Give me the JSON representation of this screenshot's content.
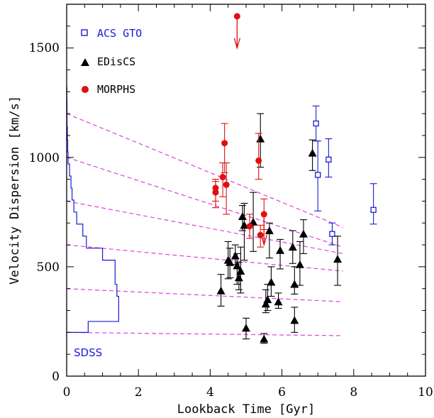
{
  "chart_data": {
    "type": "scatter",
    "xlabel": "Lookback Time [Gyr]",
    "ylabel": "Velocity Dispersion [km/s]",
    "xlim": [
      0,
      10
    ],
    "ylim": [
      0,
      1700
    ],
    "x_ticks": [
      "0",
      "2",
      "4",
      "6",
      "8",
      "10"
    ],
    "y_ticks": [
      "0",
      "500",
      "1000",
      "1500"
    ],
    "grid": false,
    "legend_position": "top-left",
    "colors": {
      "acs": "#1a1ad6",
      "edisc": "#000000",
      "morphs": "#e01010",
      "dashed": "#e040e0",
      "sdss": "#1a1ad6"
    },
    "series": [
      {
        "name": "ACS GTO",
        "marker": "open-square",
        "points": [
          {
            "x": 6.95,
            "y": 1155,
            "lo": 1075,
            "hi": 1235
          },
          {
            "x": 7.0,
            "y": 920,
            "lo": 755,
            "hi": 1075
          },
          {
            "x": 7.3,
            "y": 990,
            "lo": 910,
            "hi": 1085
          },
          {
            "x": 7.4,
            "y": 650,
            "lo": 600,
            "hi": 700
          },
          {
            "x": 8.55,
            "y": 760,
            "lo": 695,
            "hi": 880
          }
        ]
      },
      {
        "name": "EDisCS",
        "marker": "filled-triangle",
        "points": [
          {
            "x": 4.3,
            "y": 390,
            "lo": 320,
            "hi": 465
          },
          {
            "x": 4.5,
            "y": 530,
            "lo": 445,
            "hi": 615
          },
          {
            "x": 4.55,
            "y": 520,
            "lo": 450,
            "hi": 585
          },
          {
            "x": 4.7,
            "y": 550,
            "lo": 510,
            "hi": 600
          },
          {
            "x": 4.75,
            "y": 505,
            "lo": 420,
            "hi": 560
          },
          {
            "x": 4.8,
            "y": 450,
            "lo": 395,
            "hi": 520
          },
          {
            "x": 4.85,
            "y": 480,
            "lo": 380,
            "hi": 590
          },
          {
            "x": 4.9,
            "y": 730,
            "lo": 665,
            "hi": 780
          },
          {
            "x": 4.95,
            "y": 690,
            "lo": 530,
            "hi": 790
          },
          {
            "x": 5.0,
            "y": 220,
            "lo": 170,
            "hi": 265
          },
          {
            "x": 5.2,
            "y": 705,
            "lo": 570,
            "hi": 840
          },
          {
            "x": 5.4,
            "y": 1085,
            "lo": 955,
            "hi": 1200
          },
          {
            "x": 5.5,
            "y": 170,
            "lo": 150,
            "hi": 195
          },
          {
            "x": 5.55,
            "y": 330,
            "lo": 290,
            "hi": 395
          },
          {
            "x": 5.6,
            "y": 350,
            "lo": 300,
            "hi": 420
          },
          {
            "x": 5.65,
            "y": 665,
            "lo": 540,
            "hi": 700
          },
          {
            "x": 5.7,
            "y": 430,
            "lo": 365,
            "hi": 500
          },
          {
            "x": 5.9,
            "y": 340,
            "lo": 310,
            "hi": 380
          },
          {
            "x": 5.95,
            "y": 575,
            "lo": 490,
            "hi": 625
          },
          {
            "x": 6.3,
            "y": 590,
            "lo": 515,
            "hi": 665
          },
          {
            "x": 6.35,
            "y": 420,
            "lo": 375,
            "hi": 500
          },
          {
            "x": 6.35,
            "y": 255,
            "lo": 200,
            "hi": 315
          },
          {
            "x": 6.5,
            "y": 510,
            "lo": 415,
            "hi": 615
          },
          {
            "x": 6.6,
            "y": 650,
            "lo": 560,
            "hi": 715
          },
          {
            "x": 6.85,
            "y": 1020,
            "lo": 940,
            "hi": 1080
          },
          {
            "x": 7.55,
            "y": 535,
            "lo": 415,
            "hi": 640
          }
        ]
      },
      {
        "name": "MORPHS",
        "marker": "filled-circle",
        "points": [
          {
            "x": 4.15,
            "y": 860,
            "lo": 800,
            "hi": 900
          },
          {
            "x": 4.15,
            "y": 840,
            "lo": 770,
            "hi": 890
          },
          {
            "x": 4.35,
            "y": 910,
            "lo": 820,
            "hi": 975
          },
          {
            "x": 4.4,
            "y": 1065,
            "lo": 930,
            "hi": 1155
          },
          {
            "x": 4.45,
            "y": 875,
            "lo": 740,
            "hi": 975
          },
          {
            "x": 5.1,
            "y": 685,
            "lo": 630,
            "hi": 740
          },
          {
            "x": 5.35,
            "y": 985,
            "lo": 900,
            "hi": 1110
          },
          {
            "x": 5.4,
            "y": 645,
            "lo": 590,
            "hi": 690
          },
          {
            "x": 5.5,
            "y": 740,
            "lo": 670,
            "hi": 810
          }
        ]
      }
    ],
    "upper_limits": [
      {
        "series": "MORPHS",
        "x": 4.75,
        "y": 1645,
        "arrow_to": 1500
      },
      {
        "series": "MORPHS",
        "x": 5.5,
        "y": 740,
        "arrow_to": 600
      }
    ],
    "dashed_lines": [
      {
        "x": [
          0,
          7.7
        ],
        "y": [
          1200,
          680
        ]
      },
      {
        "x": [
          0,
          7.7
        ],
        "y": [
          1000,
          590
        ]
      },
      {
        "x": [
          0,
          7.7
        ],
        "y": [
          800,
          560
        ]
      },
      {
        "x": [
          0,
          7.7
        ],
        "y": [
          600,
          480
        ]
      },
      {
        "x": [
          0,
          7.7
        ],
        "y": [
          400,
          340
        ]
      },
      {
        "x": [
          0,
          7.7
        ],
        "y": [
          200,
          185
        ]
      }
    ],
    "sdss_histogram": {
      "label": "SDSS",
      "bins": [
        {
          "y0": 200,
          "y1": 250,
          "x": 0.6
        },
        {
          "y0": 250,
          "y1": 310,
          "x": 1.45
        },
        {
          "y0": 310,
          "y1": 365,
          "x": 1.45
        },
        {
          "y0": 365,
          "y1": 420,
          "x": 1.4
        },
        {
          "y0": 420,
          "y1": 475,
          "x": 1.35
        },
        {
          "y0": 475,
          "y1": 530,
          "x": 1.35
        },
        {
          "y0": 530,
          "y1": 585,
          "x": 1.0
        },
        {
          "y0": 585,
          "y1": 640,
          "x": 0.55
        },
        {
          "y0": 640,
          "y1": 695,
          "x": 0.45
        },
        {
          "y0": 695,
          "y1": 750,
          "x": 0.28
        },
        {
          "y0": 750,
          "y1": 805,
          "x": 0.2
        },
        {
          "y0": 805,
          "y1": 860,
          "x": 0.15
        },
        {
          "y0": 860,
          "y1": 915,
          "x": 0.12
        },
        {
          "y0": 915,
          "y1": 970,
          "x": 0.08
        },
        {
          "y0": 970,
          "y1": 1025,
          "x": 0.04
        },
        {
          "y0": 1025,
          "y1": 1080,
          "x": 0.03
        },
        {
          "y0": 1080,
          "y1": 1140,
          "x": 0.02
        },
        {
          "y0": 1140,
          "y1": 1260,
          "x": 0.01
        },
        {
          "y0": 1260,
          "y1": 1320,
          "x": 0.005
        }
      ]
    }
  }
}
